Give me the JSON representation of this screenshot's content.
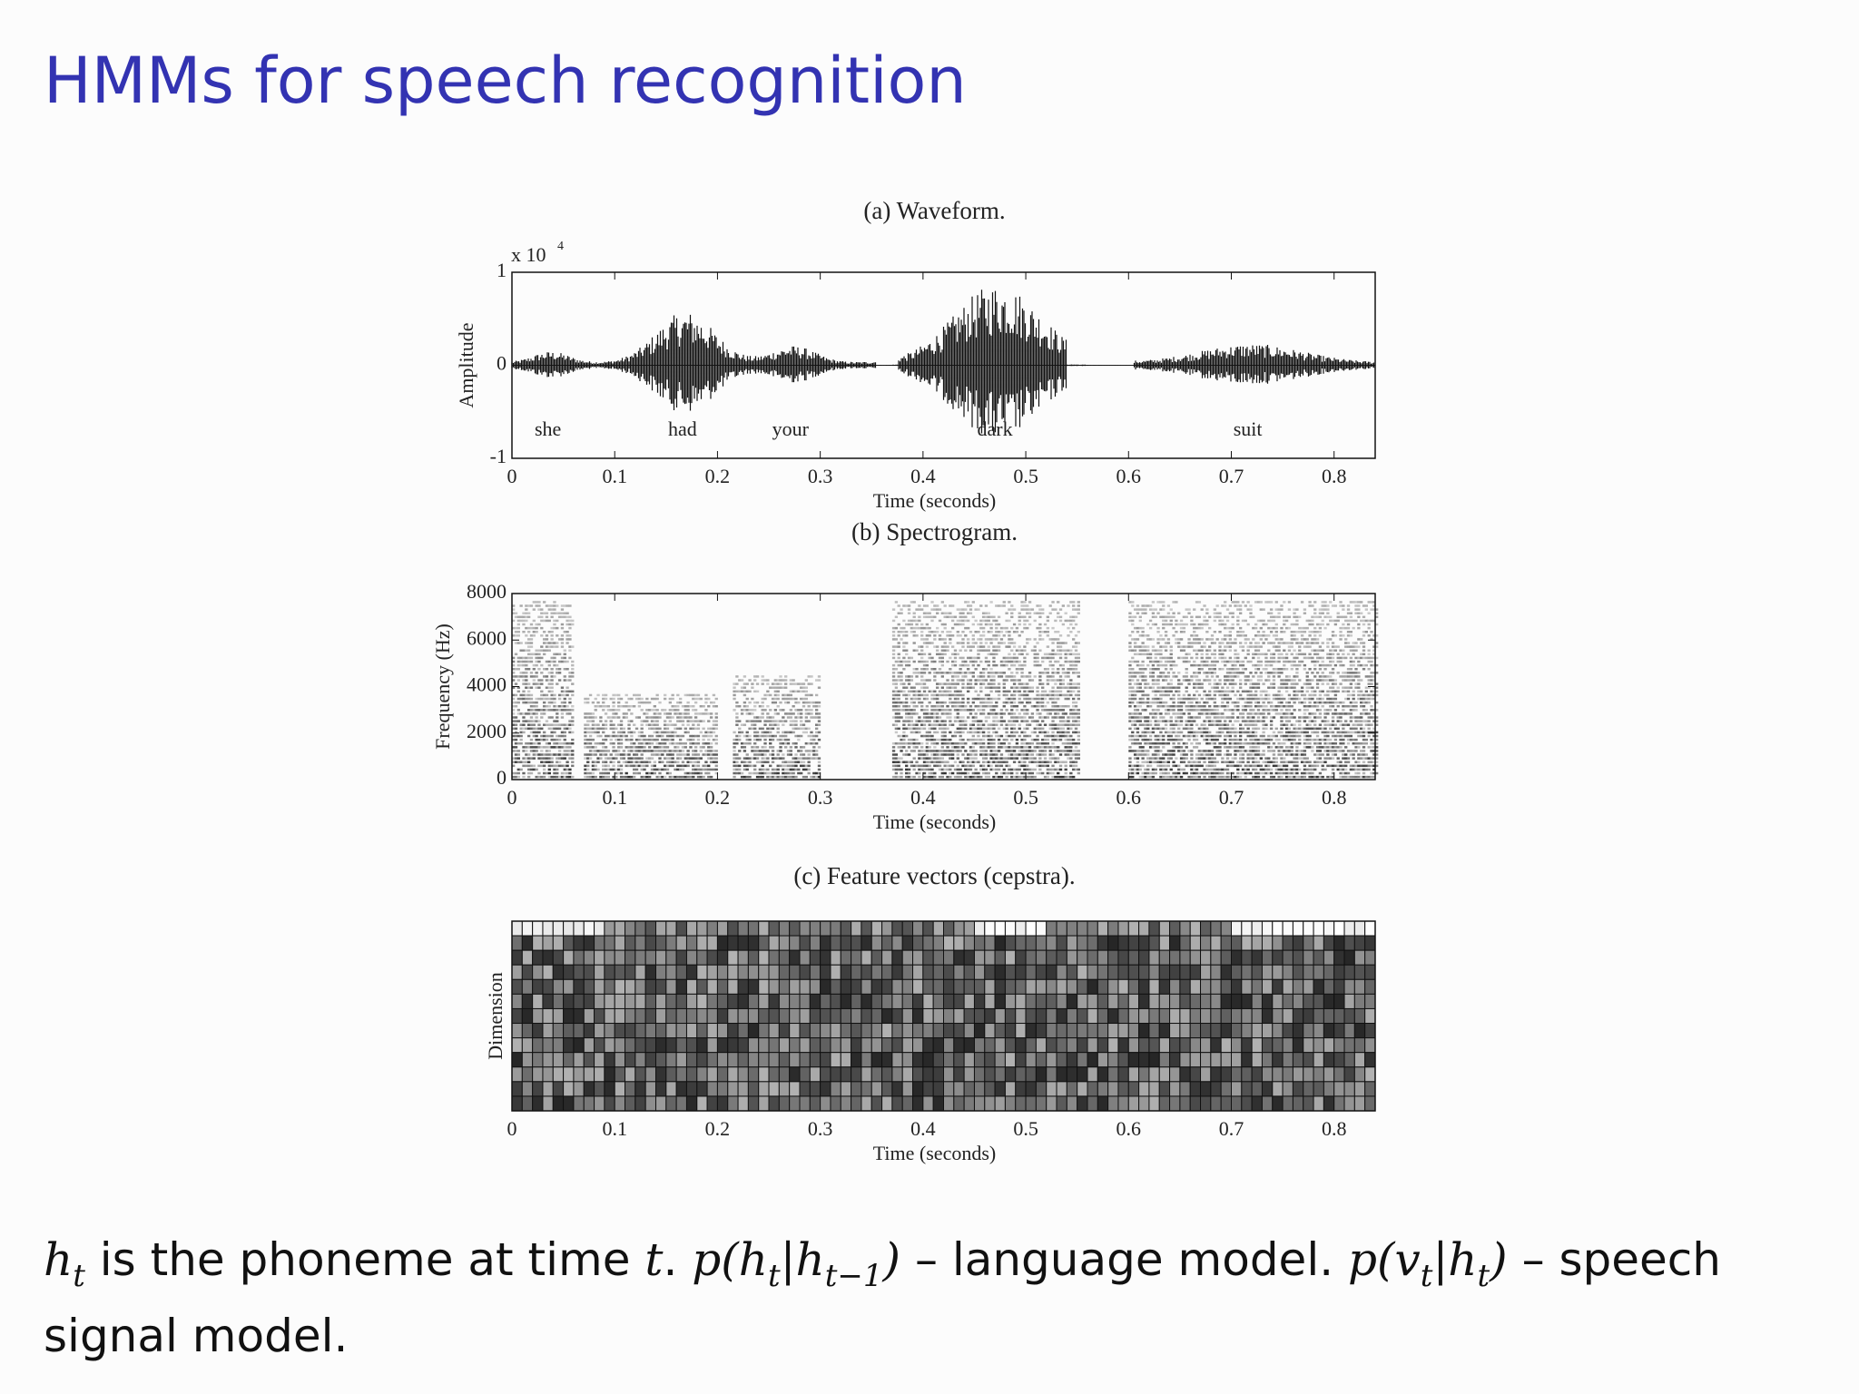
{
  "slide_title": "HMMs for speech recognition",
  "chart_data": [
    {
      "type": "waveform",
      "title": "(a) Waveform.",
      "xlabel": "Time (seconds)",
      "ylabel": "Amplitude",
      "scale_note": {
        "base": "x 10",
        "power": "4"
      },
      "xlim": [
        0,
        0.84
      ],
      "xticks": [
        0,
        0.1,
        0.2,
        0.3,
        0.4,
        0.5,
        0.6,
        0.7,
        0.8
      ],
      "ylim": [
        -1,
        1
      ],
      "yticks": [
        -1,
        0,
        1
      ],
      "annotations": [
        {
          "text": "she",
          "x": 0.035
        },
        {
          "text": "had",
          "x": 0.166
        },
        {
          "text": "your",
          "x": 0.271
        },
        {
          "text": "dark",
          "x": 0.47
        },
        {
          "text": "suit",
          "x": 0.716
        }
      ]
    },
    {
      "type": "spectrogram",
      "title": "(b) Spectrogram.",
      "xlabel": "Time (seconds)",
      "ylabel": "Frequency (Hz)",
      "xlim": [
        0,
        0.84
      ],
      "xticks": [
        0,
        0.1,
        0.2,
        0.3,
        0.4,
        0.5,
        0.6,
        0.7,
        0.8
      ],
      "ylim": [
        0,
        8000
      ],
      "yticks": [
        0,
        2000,
        4000,
        6000,
        8000
      ]
    },
    {
      "type": "heatmap",
      "title": "(c) Feature vectors (cepstra).",
      "xlabel": "Time (seconds)",
      "ylabel": "Dimension",
      "xlim": [
        0,
        0.84
      ],
      "xticks": [
        0,
        0.1,
        0.2,
        0.3,
        0.4,
        0.5,
        0.6,
        0.7,
        0.8
      ]
    }
  ],
  "body": [
    "h",
    "t",
    " is the phoneme at time ",
    "t",
    ". ",
    "p(h",
    "t",
    "|h",
    "t−1",
    ")",
    " – language model. ",
    "p(v",
    "t",
    "|h",
    "t",
    ")",
    " – speech signal model."
  ]
}
